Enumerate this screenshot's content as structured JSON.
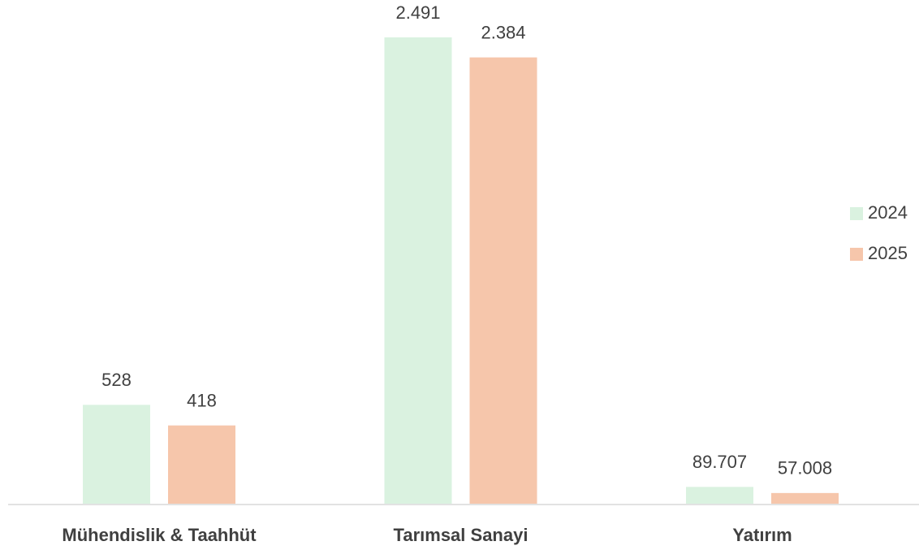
{
  "chart_data": {
    "type": "bar",
    "categories": [
      "Mühendislik & Taahhüt",
      "Tarımsal Sanayi",
      "Yatırım"
    ],
    "series": [
      {
        "name": "2024",
        "color": "#daf2e0",
        "values": [
          528,
          2491,
          89.707
        ],
        "value_labels": [
          "528",
          "2.491",
          "89.707"
        ]
      },
      {
        "name": "2025",
        "color": "#f6c6ab",
        "values": [
          418,
          2384,
          57.008
        ],
        "value_labels": [
          "418",
          "2.384",
          "57.008"
        ]
      }
    ],
    "legend": "right"
  }
}
